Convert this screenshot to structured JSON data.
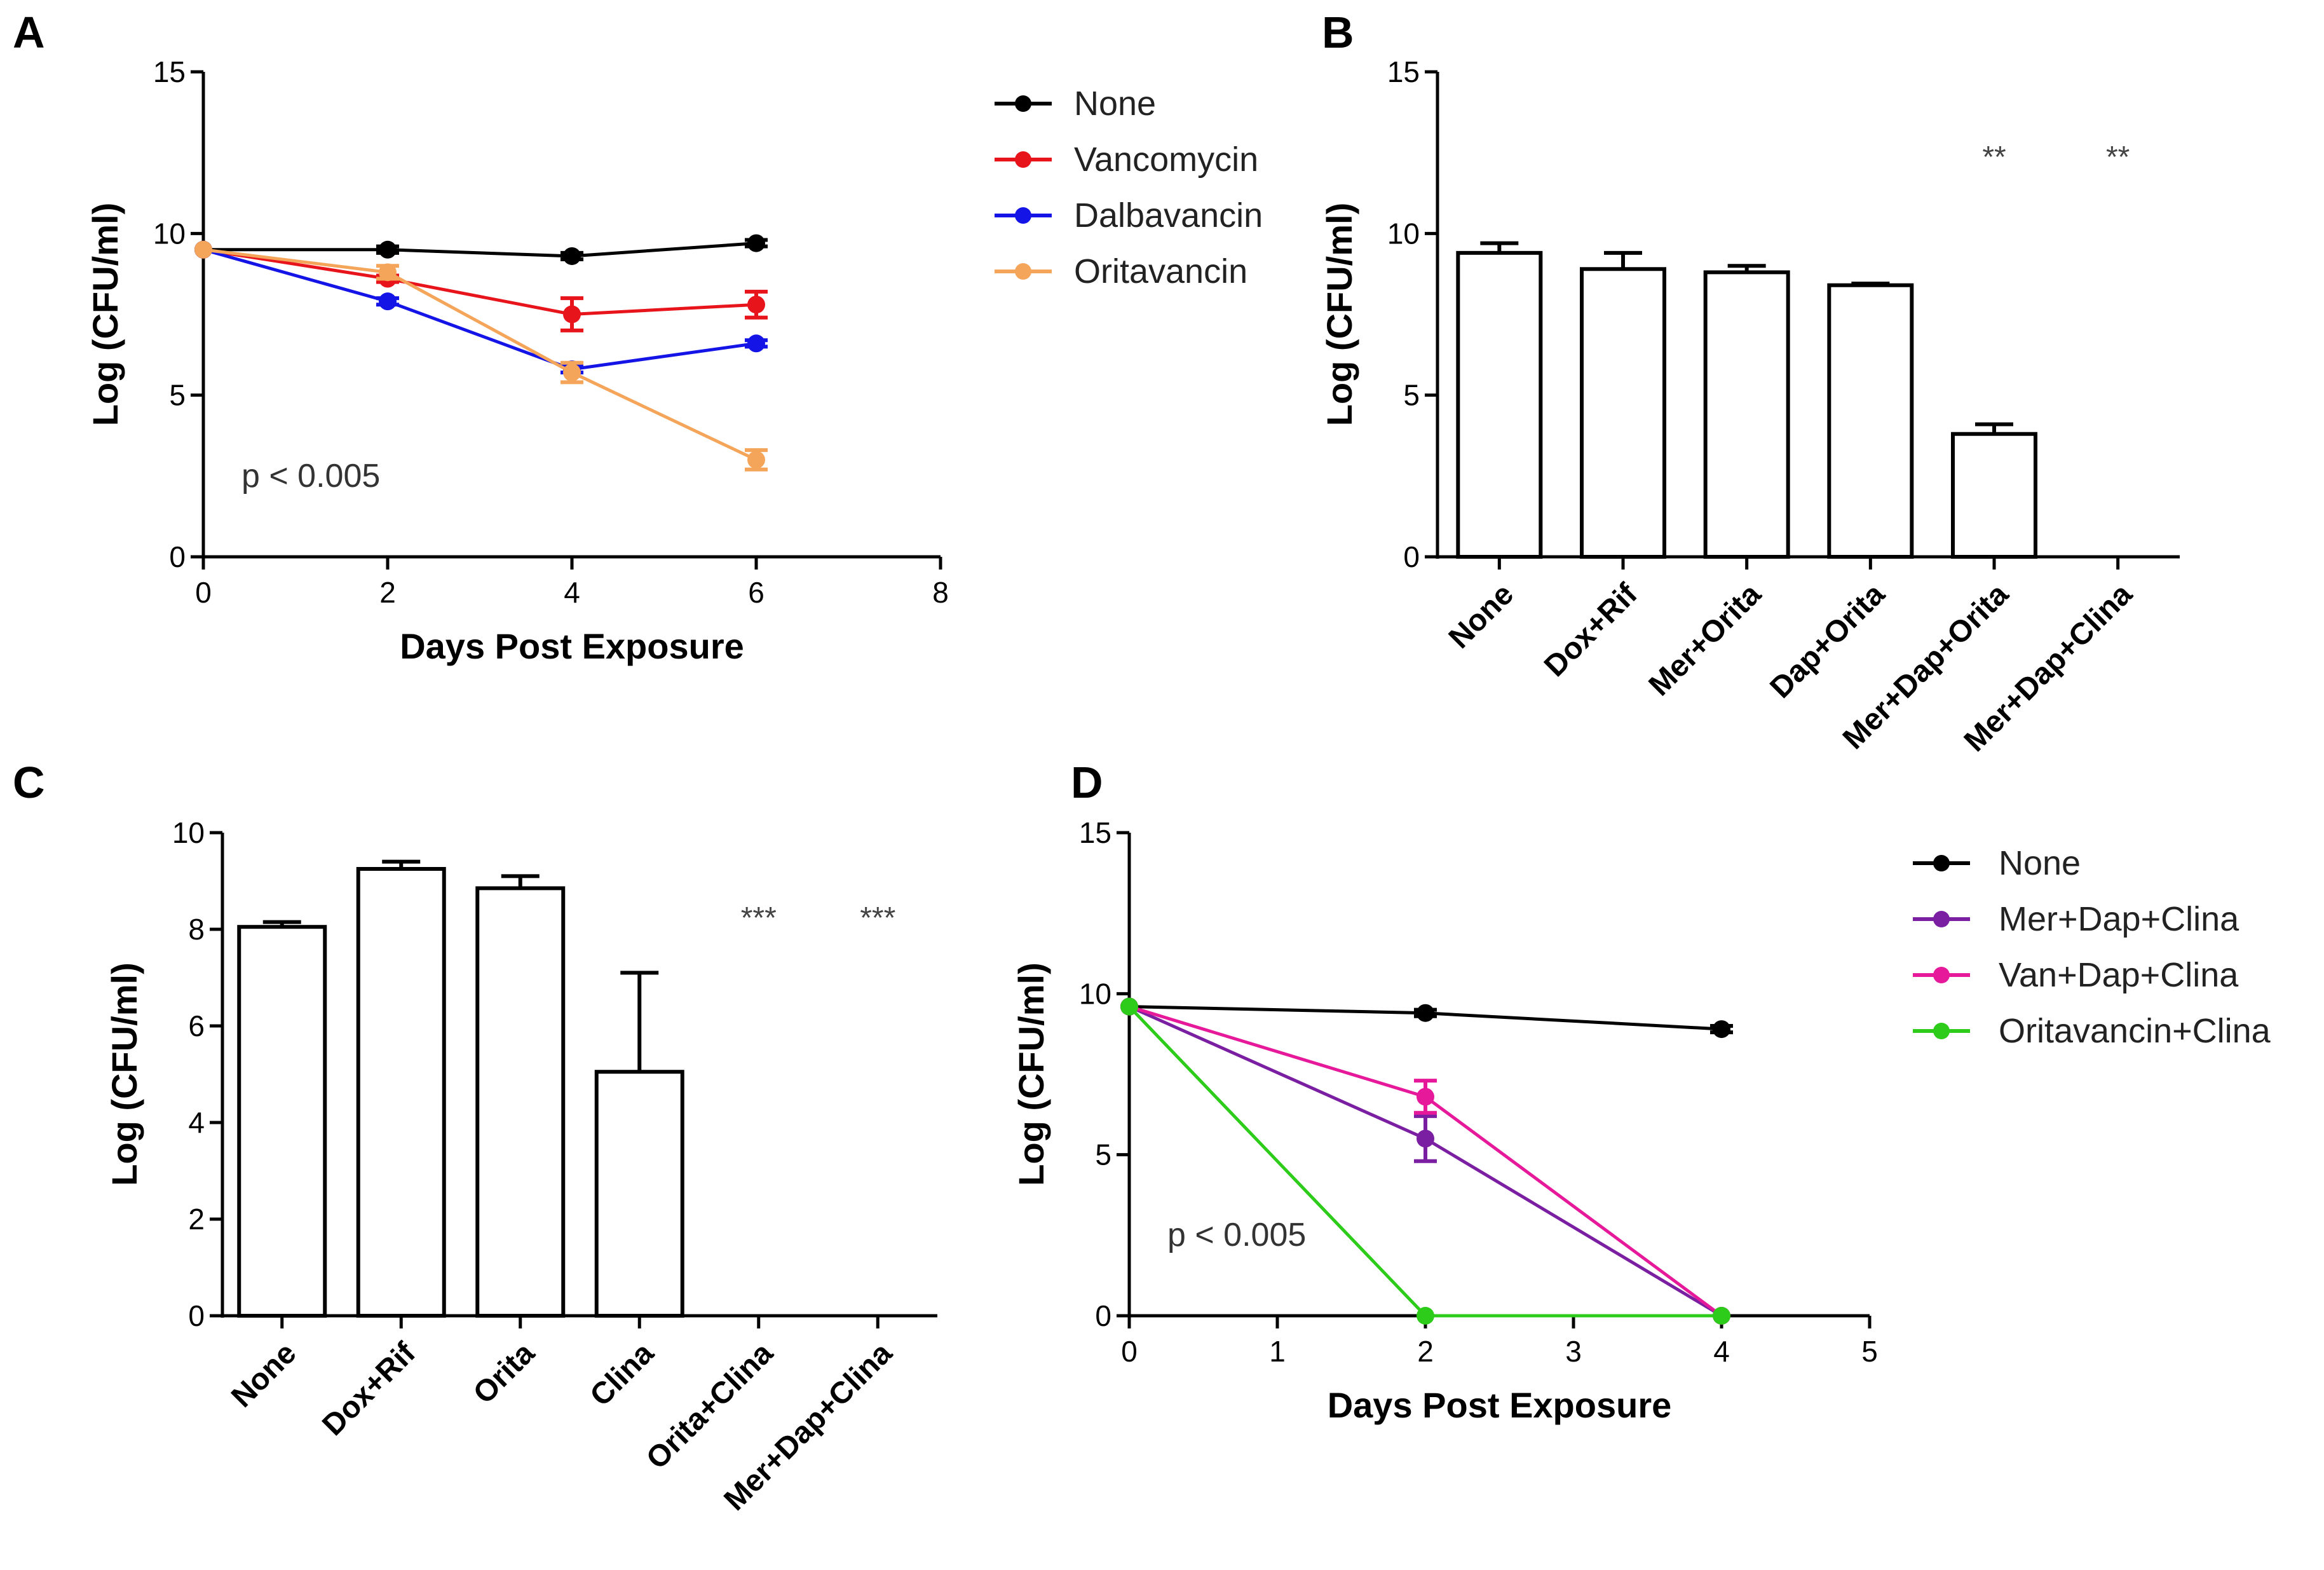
{
  "chart_data": [
    {
      "panel": "A",
      "type": "line",
      "xlabel": "Days Post Exposure",
      "ylabel": "Log (CFU/ml)",
      "xlim": [
        0,
        8
      ],
      "ylim": [
        0,
        15
      ],
      "xticks": [
        0,
        2,
        4,
        6,
        8
      ],
      "yticks": [
        0,
        5,
        10,
        15
      ],
      "annotation": "p < 0.005",
      "legend_position": "right",
      "series": [
        {
          "name": "None",
          "color": "#000000",
          "x": [
            0,
            2,
            4,
            6
          ],
          "values": [
            9.5,
            9.5,
            9.3,
            9.7
          ],
          "err": [
            0,
            0.1,
            0.1,
            0.1
          ]
        },
        {
          "name": "Vancomycin",
          "color": "#e8141b",
          "x": [
            0,
            2,
            4,
            6
          ],
          "values": [
            9.5,
            8.6,
            7.5,
            7.8
          ],
          "err": [
            0,
            0.1,
            0.5,
            0.4
          ]
        },
        {
          "name": "Dalbavancin",
          "color": "#1414e6",
          "x": [
            0,
            2,
            4,
            6
          ],
          "values": [
            9.5,
            7.9,
            5.8,
            6.6
          ],
          "err": [
            0,
            0.1,
            0.1,
            0.1
          ]
        },
        {
          "name": "Oritavancin",
          "color": "#f5a55a",
          "x": [
            0,
            2,
            4,
            6
          ],
          "values": [
            9.5,
            8.8,
            5.7,
            3.0
          ],
          "err": [
            0,
            0.2,
            0.3,
            0.3
          ]
        }
      ]
    },
    {
      "panel": "B",
      "type": "bar",
      "ylabel": "Log (CFU/ml)",
      "ylim": [
        0,
        15
      ],
      "yticks": [
        0,
        5,
        10,
        15
      ],
      "categories": [
        "None",
        "Dox+Rif",
        "Mer+Orita",
        "Dap+Orita",
        "Mer+Dap+Orita",
        "Mer+Dap+Clina"
      ],
      "values": [
        9.4,
        8.9,
        8.8,
        8.4,
        3.8,
        0
      ],
      "err": [
        0.3,
        0.5,
        0.2,
        0.05,
        0.3,
        0
      ],
      "significance": [
        "",
        "",
        "",
        "",
        "**",
        "**"
      ]
    },
    {
      "panel": "C",
      "type": "bar",
      "ylabel": "Log (CFU/ml)",
      "ylim": [
        0,
        10
      ],
      "yticks": [
        0,
        2,
        4,
        6,
        8,
        10
      ],
      "categories": [
        "None",
        "Dox+Rif",
        "Orita",
        "Clina",
        "Orita+Clina",
        "Mer+Dap+Clina"
      ],
      "values": [
        8.05,
        9.25,
        8.85,
        5.05,
        0,
        0
      ],
      "err": [
        0.1,
        0.15,
        0.25,
        2.05,
        0,
        0
      ],
      "significance": [
        "",
        "",
        "",
        "",
        "***",
        "***"
      ]
    },
    {
      "panel": "D",
      "type": "line",
      "xlabel": "Days Post Exposure",
      "ylabel": "Log (CFU/ml)",
      "xlim": [
        0,
        5
      ],
      "ylim": [
        0,
        15
      ],
      "xticks": [
        0,
        1,
        2,
        3,
        4,
        5
      ],
      "yticks": [
        0,
        5,
        10,
        15
      ],
      "annotation": "p < 0.005",
      "legend_position": "right",
      "series": [
        {
          "name": "None",
          "color": "#000000",
          "x": [
            0,
            2,
            4
          ],
          "values": [
            9.6,
            9.4,
            8.9
          ],
          "err": [
            0,
            0.1,
            0.1
          ]
        },
        {
          "name": "Mer+Dap+Clina",
          "color": "#7b1fa2",
          "x": [
            0,
            2,
            4
          ],
          "values": [
            9.6,
            5.5,
            0
          ],
          "err": [
            0,
            0.7,
            0
          ]
        },
        {
          "name": "Van+Dap+Clina",
          "color": "#e6199a",
          "x": [
            0,
            2,
            4
          ],
          "values": [
            9.6,
            6.8,
            0
          ],
          "err": [
            0,
            0.5,
            0
          ]
        },
        {
          "name": "Oritavancin+Clina",
          "color": "#2ecc1a",
          "x": [
            0,
            2,
            4
          ],
          "values": [
            9.6,
            0,
            0
          ],
          "err": [
            0,
            0,
            0
          ]
        }
      ]
    }
  ]
}
